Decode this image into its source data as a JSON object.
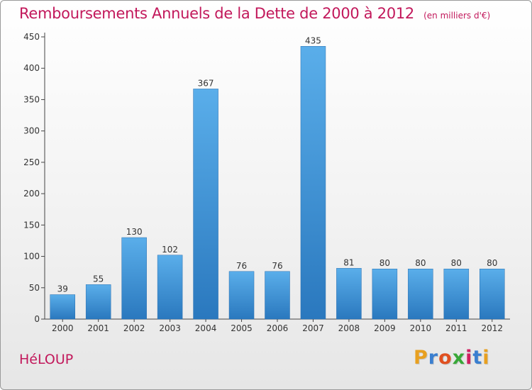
{
  "chart_data": {
    "type": "bar",
    "title": "Remboursements Annuels de la Dette de 2000 à 2012",
    "subtitle": "(en milliers d'€)",
    "categories": [
      "2000",
      "2001",
      "2002",
      "2003",
      "2004",
      "2005",
      "2006",
      "2007",
      "2008",
      "2009",
      "2010",
      "2011",
      "2012"
    ],
    "values": [
      39,
      55,
      130,
      102,
      367,
      76,
      76,
      435,
      81,
      80,
      80,
      80,
      80
    ],
    "ylim": [
      0,
      450
    ],
    "yticks": [
      0,
      50,
      100,
      150,
      200,
      250,
      300,
      350,
      400,
      450
    ],
    "grid": false,
    "bar_color": "#3a8fd6"
  },
  "footer": {
    "commune": "HéLOUP",
    "brand": "Proxiti",
    "brand_colors": [
      "#e8a020",
      "#3a7fd0",
      "#e05020",
      "#38a838",
      "#d02060",
      "#3a7fd0",
      "#e8a020"
    ]
  }
}
